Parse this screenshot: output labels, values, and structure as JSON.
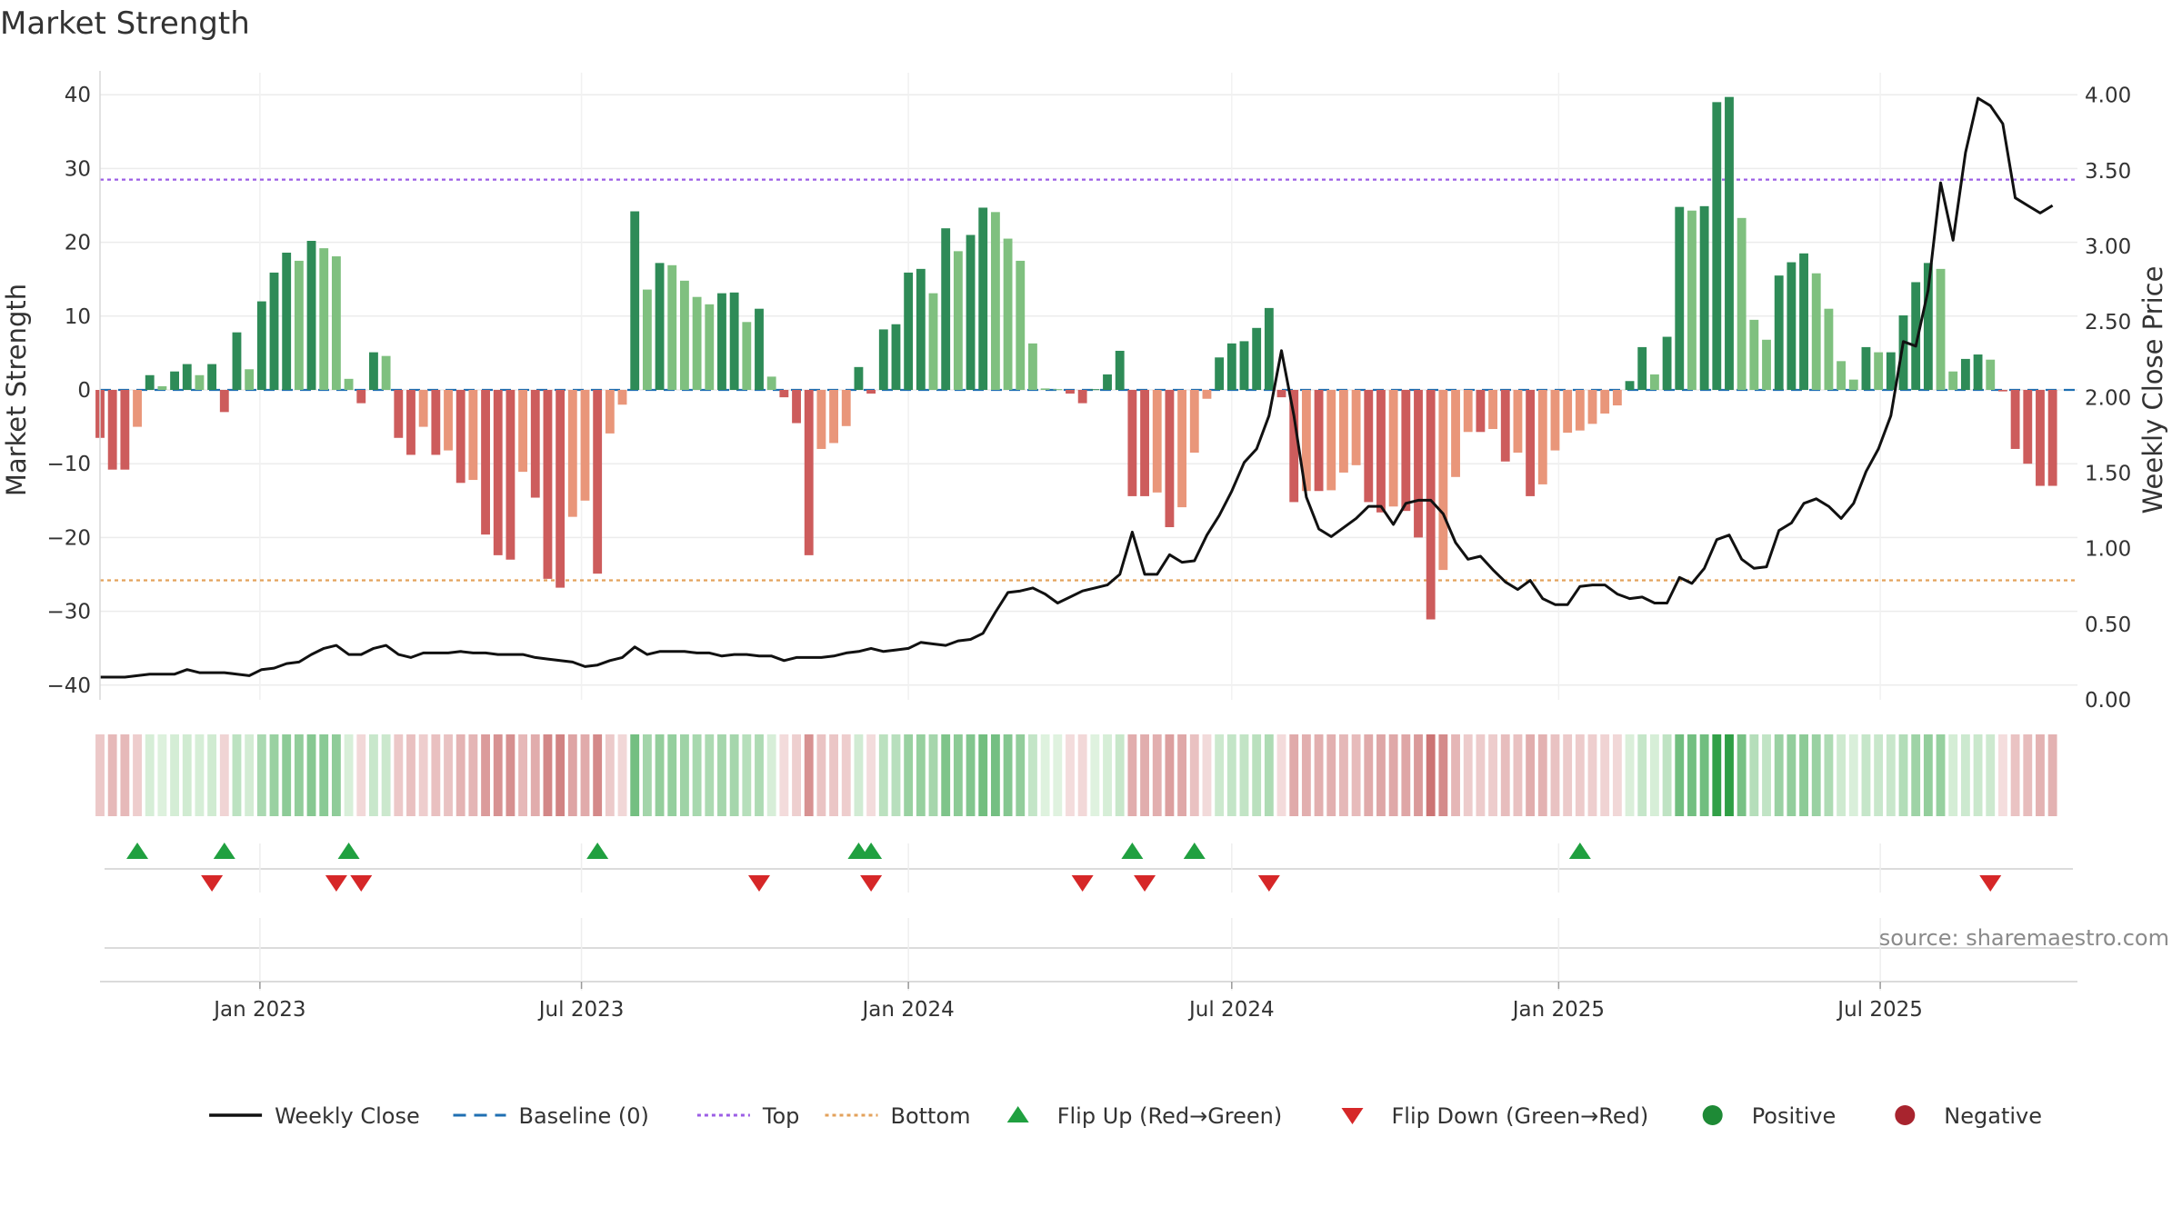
{
  "chart_data": {
    "type": "bar",
    "title": "Market Strength",
    "ylabel_left": "Market Strength",
    "ylabel_right": "Weekly Close Price",
    "source": "source: sharemaestro.com",
    "ylim_left": [
      -42,
      42
    ],
    "ylim_right": [
      0,
      4.1
    ],
    "yticks_left": [
      40,
      30,
      20,
      10,
      0,
      -10,
      -20,
      -30,
      -40
    ],
    "ytick_labels_left": [
      "40",
      "30",
      "20",
      "10",
      "0",
      "−10",
      "−20",
      "−30",
      "−40"
    ],
    "yticks_right": [
      4.0,
      3.5,
      3.0,
      2.5,
      2.0,
      1.5,
      1.0,
      0.5,
      0.0
    ],
    "ytick_labels_right": [
      "4.00",
      "3.50",
      "3.00",
      "2.50",
      "2.00",
      "1.50",
      "1.00",
      "0.50",
      "0.00"
    ],
    "x_start": "2022-10-03",
    "x_end": "2025-10-20",
    "xticks": [
      {
        "date": "2023-01-01",
        "label": "Jan 2023"
      },
      {
        "date": "2023-07-01",
        "label": "Jul 2023"
      },
      {
        "date": "2024-01-01",
        "label": "Jan 2024"
      },
      {
        "date": "2024-07-01",
        "label": "Jul 2024"
      },
      {
        "date": "2025-01-01",
        "label": "Jan 2025"
      },
      {
        "date": "2025-07-01",
        "label": "Jul 2025"
      }
    ],
    "top_level": 28.5,
    "bottom_level": -25.8,
    "baseline": 0,
    "strength": [
      -6.5,
      -10.8,
      -10.8,
      -5,
      2,
      0.5,
      2.5,
      3.5,
      2,
      3.5,
      -3,
      7.8,
      2.8,
      12,
      15.9,
      18.6,
      17.5,
      20.2,
      19.2,
      18.1,
      1.5,
      -1.8,
      5.1,
      4.6,
      -6.5,
      -8.8,
      -5,
      -8.8,
      -8.2,
      -12.6,
      -12.2,
      -19.6,
      -22.4,
      -23,
      -11.1,
      -14.6,
      -25.6,
      -26.8,
      -17.2,
      -15,
      -24.9,
      -5.9,
      -2,
      24.2,
      13.6,
      17.2,
      16.9,
      14.8,
      12.6,
      11.6,
      13.1,
      13.2,
      9.2,
      11,
      1.8,
      -1,
      -4.5,
      -22.4,
      -8,
      -7.2,
      -4.9,
      3.1,
      -0.5,
      8.2,
      8.9,
      15.9,
      16.4,
      13.1,
      21.9,
      18.8,
      21,
      24.7,
      24.1,
      20.5,
      17.5,
      6.3,
      0.2,
      0.1,
      -0.5,
      -1.8,
      0.1,
      2.1,
      5.3,
      -14.4,
      -14.4,
      -13.9,
      -18.6,
      -15.9,
      -8.5,
      -1.2,
      4.4,
      6.3,
      6.6,
      8.4,
      11.1,
      -1,
      -15.2,
      -13.7,
      -13.7,
      -13.6,
      -11.2,
      -10.2,
      -15.2,
      -16.6,
      -15.8,
      -16.4,
      -20,
      -31.1,
      -24.4,
      -11.8,
      -5.7,
      -5.7,
      -5.3,
      -9.7,
      -8.5,
      -14.4,
      -12.8,
      -8.2,
      -5.8,
      -5.5,
      -4.6,
      -3.2,
      -2.1,
      1.2,
      5.8,
      2.1,
      7.2,
      24.8,
      24.3,
      24.9,
      39,
      39.7,
      23.3,
      9.5,
      6.8,
      15.5,
      17.3,
      18.5,
      15.8,
      11,
      3.9,
      1.4,
      5.8,
      5.1,
      5.1,
      10.1,
      14.6,
      17.2,
      16.4,
      2.5,
      4.2,
      4.8,
      4.1,
      -0.2,
      -8,
      -10,
      -13,
      -13
    ],
    "weekly_close": [
      0.15,
      0.15,
      0.15,
      0.16,
      0.17,
      0.17,
      0.17,
      0.2,
      0.18,
      0.18,
      0.18,
      0.17,
      0.16,
      0.2,
      0.21,
      0.24,
      0.25,
      0.3,
      0.34,
      0.36,
      0.3,
      0.3,
      0.34,
      0.36,
      0.3,
      0.28,
      0.31,
      0.31,
      0.31,
      0.32,
      0.31,
      0.31,
      0.3,
      0.3,
      0.3,
      0.28,
      0.27,
      0.26,
      0.25,
      0.22,
      0.23,
      0.26,
      0.28,
      0.35,
      0.3,
      0.32,
      0.32,
      0.32,
      0.31,
      0.31,
      0.29,
      0.3,
      0.3,
      0.29,
      0.29,
      0.26,
      0.28,
      0.28,
      0.28,
      0.29,
      0.31,
      0.32,
      0.34,
      0.32,
      0.33,
      0.34,
      0.38,
      0.37,
      0.36,
      0.39,
      0.4,
      0.44,
      0.58,
      0.71,
      0.72,
      0.74,
      0.7,
      0.64,
      0.68,
      0.72,
      0.74,
      0.76,
      0.83,
      1.11,
      0.83,
      0.83,
      0.96,
      0.91,
      0.92,
      1.09,
      1.22,
      1.38,
      1.57,
      1.66,
      1.88,
      2.31,
      1.88,
      1.34,
      1.13,
      1.08,
      1.14,
      1.2,
      1.28,
      1.28,
      1.16,
      1.3,
      1.32,
      1.32,
      1.23,
      1.04,
      0.93,
      0.95,
      0.86,
      0.78,
      0.73,
      0.79,
      0.67,
      0.63,
      0.63,
      0.75,
      0.76,
      0.76,
      0.7,
      0.67,
      0.68,
      0.64,
      0.64,
      0.81,
      0.77,
      0.87,
      1.06,
      1.09,
      0.93,
      0.87,
      0.88,
      1.12,
      1.17,
      1.3,
      1.33,
      1.28,
      1.2,
      1.3,
      1.51,
      1.66,
      1.88,
      2.37,
      2.34,
      2.71,
      3.42,
      3.04,
      3.62,
      3.98,
      3.93,
      3.81,
      3.32,
      3.27,
      3.22,
      3.27
    ],
    "flip_up_dates": [
      "2022-10-24",
      "2022-12-12",
      "2023-02-20",
      "2023-07-10",
      "2023-12-04",
      "2023-12-11",
      "2024-05-06",
      "2024-06-10",
      "2025-01-13"
    ],
    "flip_down_dates": [
      "2022-12-05",
      "2023-02-13",
      "2023-02-27",
      "2023-10-09",
      "2023-12-11",
      "2024-04-08",
      "2024-05-13",
      "2024-07-22",
      "2025-09-01"
    ],
    "legend": [
      {
        "label": "Weekly Close",
        "kind": "line",
        "color": "#111111"
      },
      {
        "label": "Baseline (0)",
        "kind": "dash",
        "color": "#1f6fb2"
      },
      {
        "label": "Top",
        "kind": "dot",
        "color": "#9b5de5"
      },
      {
        "label": "Bottom",
        "kind": "dot",
        "color": "#e3a25b"
      },
      {
        "label": "Flip Up (Red→Green)",
        "kind": "up",
        "color": "#20a040"
      },
      {
        "label": "Flip Down (Green→Red)",
        "kind": "down",
        "color": "#d62728"
      },
      {
        "label": "Positive",
        "kind": "circle",
        "color": "#1e8a36"
      },
      {
        "label": "Negative",
        "kind": "circle",
        "color": "#a8242e"
      }
    ],
    "legend_position": "bottom",
    "grid": true,
    "colors": {
      "pos_dark": "#2e8b57",
      "pos_light": "#7fc07f",
      "neg_dark": "#cd5c5c",
      "neg_light": "#e9967a",
      "price_line": "#111111",
      "baseline": "#1f6fb2",
      "top": "#9b5de5",
      "bottom": "#e3a25b",
      "flip_up": "#20a040",
      "flip_down": "#d62728"
    }
  }
}
